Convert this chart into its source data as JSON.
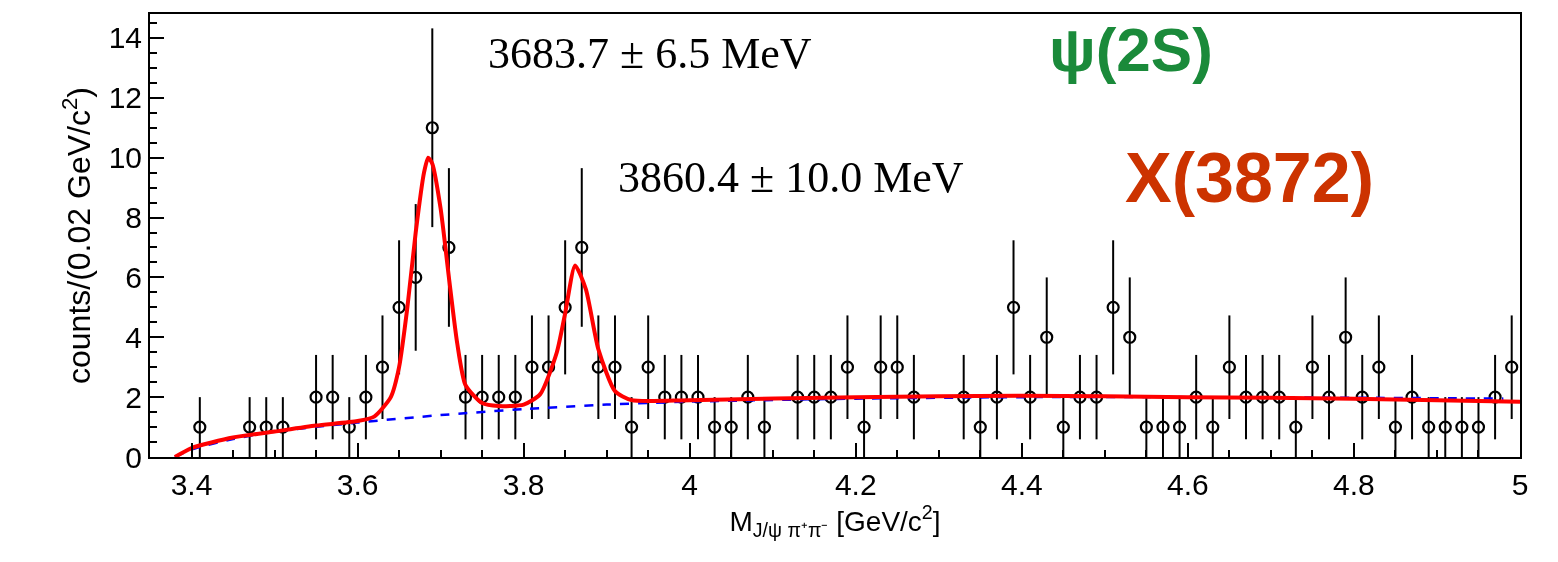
{
  "chart_data": {
    "type": "scatter",
    "xlabel": "M$_{J/ψ π⁺π⁻}$ [GeV/c$^{2}$]",
    "ylabel": "counts/(0.02 GeV/c$^{2}$)",
    "annotations": [
      "3683.7 ± 6.5 MeV",
      "3860.4 ± 10.0 MeV",
      "ψ(2S)",
      "X(3872)"
    ],
    "xlim": [
      3.35,
      5
    ],
    "xticks": [
      3.4,
      3.6,
      3.8,
      {
        "value": 4,
        "label": "4"
      },
      4.2,
      4.4,
      4.6,
      4.8,
      {
        "value": 5,
        "label": "5"
      }
    ],
    "ylim": [
      0,
      14.8
    ],
    "yticks": [
      0,
      2,
      4,
      6,
      8,
      10,
      12,
      14
    ],
    "series": [
      {
        "marker": "circle",
        "color": "#000000",
        "x": [
          3.41,
          3.47,
          3.49,
          3.51,
          3.55,
          3.57,
          3.59,
          3.61,
          3.63,
          3.65,
          3.67,
          3.69,
          3.71,
          3.73,
          3.75,
          3.77,
          3.79,
          3.81,
          3.83,
          3.85,
          3.87,
          3.89,
          3.91,
          3.93,
          3.95,
          3.97,
          3.99,
          4.01,
          4.03,
          4.05,
          4.07,
          4.09,
          4.13,
          4.15,
          4.17,
          4.19,
          4.21,
          4.23,
          4.25,
          4.27,
          4.33,
          4.35,
          4.37,
          4.39,
          4.41,
          4.43,
          4.45,
          4.47,
          4.49,
          4.51,
          4.53,
          4.55,
          4.57,
          4.59,
          4.61,
          4.63,
          4.65,
          4.67,
          4.69,
          4.71,
          4.73,
          4.75,
          4.77,
          4.79,
          4.81,
          4.83,
          4.85,
          4.87,
          4.89,
          4.91,
          4.93,
          4.95,
          4.97,
          4.99
        ],
        "values": [
          1,
          1,
          1,
          1,
          2,
          2,
          1,
          2,
          3,
          5,
          6,
          11,
          7,
          2,
          2,
          2,
          2,
          3,
          3,
          5,
          7,
          3,
          3,
          1,
          3,
          2,
          2,
          2,
          1,
          1,
          2,
          1,
          2,
          2,
          2,
          3,
          1,
          3,
          3,
          2,
          2,
          1,
          2,
          5,
          2,
          4,
          1,
          2,
          2,
          5,
          4,
          1,
          1,
          1,
          2,
          1,
          3,
          2,
          2,
          2,
          1,
          3,
          2,
          4,
          2,
          3,
          1,
          2,
          1,
          1,
          1,
          1,
          2,
          3
        ],
        "errors": [
          1,
          1,
          1,
          1,
          1.41,
          1.41,
          1,
          1.41,
          1.73,
          2.24,
          2.45,
          3.32,
          2.65,
          1.41,
          1.41,
          1.41,
          1.41,
          1.73,
          1.73,
          2.24,
          2.65,
          1.73,
          1.73,
          1,
          1.73,
          1.41,
          1.41,
          1.41,
          1,
          1,
          1.41,
          1,
          1.41,
          1.41,
          1.41,
          1.73,
          1,
          1.73,
          1.73,
          1.41,
          1.41,
          1,
          1.41,
          2.24,
          1.41,
          2,
          1,
          1.41,
          1.41,
          2.24,
          2,
          1,
          1,
          1,
          1.41,
          1,
          1.73,
          1.41,
          1.41,
          1.41,
          1,
          1.73,
          1.41,
          2,
          1.41,
          1.73,
          1,
          1.41,
          1,
          1,
          1,
          1,
          1.41,
          1.73
        ]
      },
      {
        "type": "line",
        "color": "#0000ff",
        "line_style": "dashed",
        "x": [
          3.38,
          3.4,
          3.45,
          3.5,
          3.6,
          3.7,
          3.8,
          3.9,
          4.0,
          4.2,
          4.4,
          4.6,
          4.8,
          4.98
        ],
        "values": [
          0,
          0.25,
          0.6,
          0.85,
          1.15,
          1.4,
          1.6,
          1.75,
          1.85,
          1.95,
          2.0,
          2.0,
          1.98,
          1.95
        ]
      },
      {
        "type": "line",
        "color": "#ff0000",
        "line_style": "solid",
        "x": [
          3.38,
          3.4,
          3.45,
          3.5,
          3.55,
          3.6,
          3.62,
          3.64,
          3.65,
          3.66,
          3.67,
          3.68,
          3.685,
          3.69,
          3.7,
          3.71,
          3.72,
          3.73,
          3.75,
          3.77,
          3.8,
          3.82,
          3.84,
          3.85,
          3.862,
          3.875,
          3.89,
          3.91,
          3.93,
          4.0,
          4.2,
          4.4,
          4.6,
          4.8,
          5.0
        ],
        "values": [
          0,
          0.3,
          0.65,
          0.85,
          1.05,
          1.2,
          1.35,
          2.0,
          3.0,
          5.0,
          7.5,
          9.5,
          10.0,
          9.8,
          8.3,
          6.0,
          3.8,
          2.4,
          1.8,
          1.7,
          1.75,
          2.1,
          3.5,
          4.8,
          6.4,
          5.6,
          3.6,
          2.2,
          1.9,
          1.9,
          2.0,
          2.05,
          2.0,
          1.95,
          1.85
        ]
      }
    ]
  }
}
